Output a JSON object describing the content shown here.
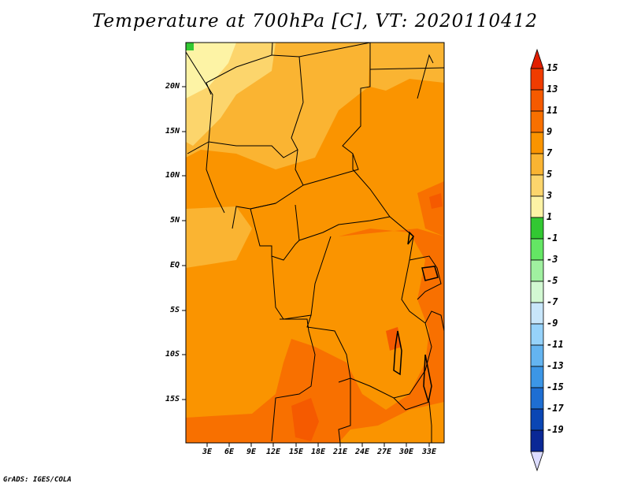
{
  "title": "Temperature at 700hPa [C], VT: 2020110412",
  "credit": "GrADS: IGES/COLA",
  "lat_labels": [
    "20N",
    "15N",
    "10N",
    "5N",
    "EQ",
    "5S",
    "10S",
    "15S"
  ],
  "lon_labels": [
    "3E",
    "6E",
    "9E",
    "12E",
    "15E",
    "18E",
    "21E",
    "24E",
    "27E",
    "30E",
    "33E"
  ],
  "colorbar": {
    "labels": [
      "15",
      "13",
      "11",
      "9",
      "7",
      "5",
      "3",
      "1",
      "-1",
      "-3",
      "-5",
      "-7",
      "-9",
      "-11",
      "-13",
      "-15",
      "-17",
      "-19"
    ],
    "colors": [
      "#f03c00",
      "#f55a00",
      "#f87000",
      "#fa9400",
      "#fab432",
      "#fcd56c",
      "#fdf3a5",
      "#32c832",
      "#64e664",
      "#a0f0a0",
      "#d2f8d2",
      "#c8e6fa",
      "#96d2fa",
      "#64b4f0",
      "#3c96e6",
      "#1e6ed2",
      "#0a46b4",
      "#0a2896",
      "#0a0a6e"
    ],
    "top_arrow_color": "#e11e00",
    "bottom_arrow_color": "#dcdcff"
  }
}
